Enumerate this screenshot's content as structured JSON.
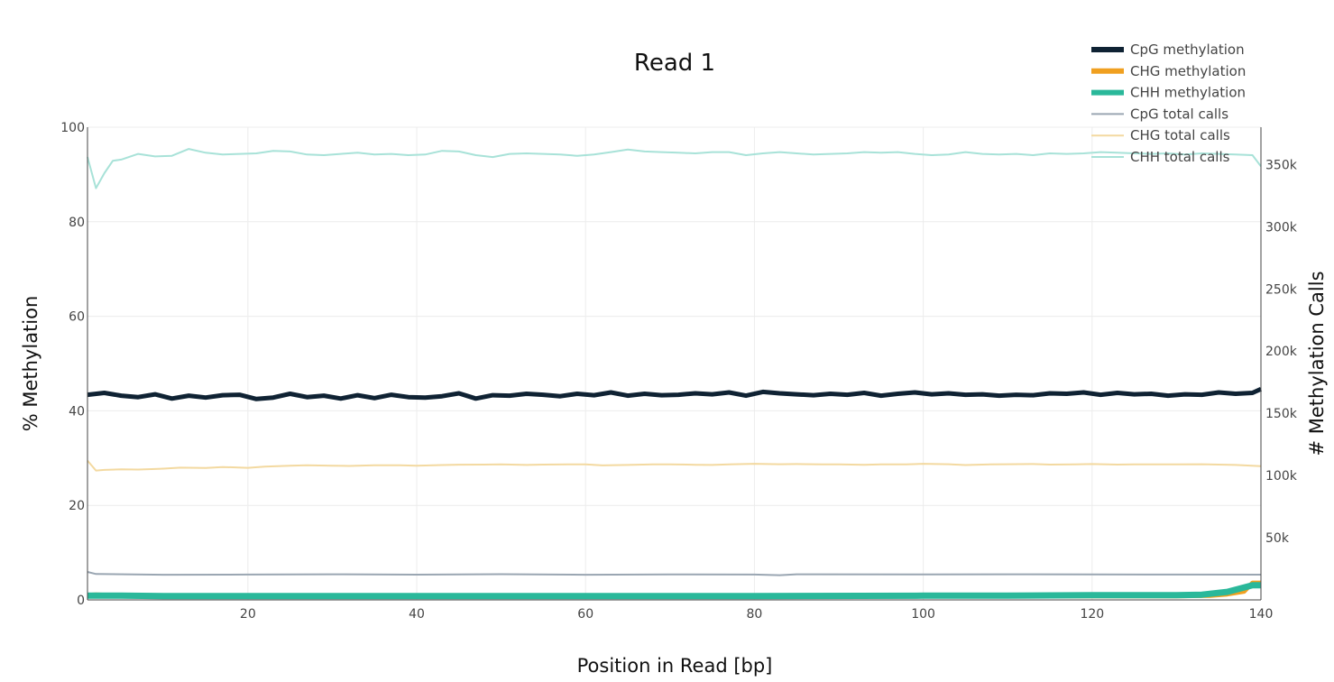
{
  "chart_data": {
    "type": "line",
    "title": "Read 1",
    "xlabel": "Position in Read [bp]",
    "ylabel": "% Methylation",
    "y2label": "# Methylation Calls",
    "xlim": [
      1,
      140
    ],
    "ylim": [
      0,
      100
    ],
    "y2lim": [
      0,
      380000
    ],
    "x_ticks": [
      "20",
      "40",
      "60",
      "80",
      "100",
      "120",
      "140"
    ],
    "y_ticks": [
      "0",
      "20",
      "40",
      "60",
      "80",
      "100"
    ],
    "y2_ticks": [
      "50k",
      "100k",
      "150k",
      "200k",
      "250k",
      "300k",
      "350k"
    ],
    "grid": true,
    "legend_position": "top-right",
    "colors": {
      "cpg_meth": "#0f2233",
      "chg_meth": "#f0a020",
      "chh_meth": "#2ab89a",
      "cpg_calls": "#9aa6b2",
      "chg_calls": "#f3d9a0",
      "chh_calls": "#a8e2d8"
    },
    "series": [
      {
        "name": "CpG methylation",
        "axis": "y",
        "key": "cpg_meth",
        "width": 5,
        "x": [
          1,
          3,
          5,
          7,
          9,
          11,
          13,
          15,
          17,
          19,
          21,
          23,
          25,
          27,
          29,
          31,
          33,
          35,
          37,
          39,
          41,
          43,
          45,
          47,
          49,
          51,
          53,
          55,
          57,
          59,
          61,
          63,
          65,
          67,
          69,
          71,
          73,
          75,
          77,
          79,
          81,
          83,
          85,
          87,
          89,
          91,
          93,
          95,
          97,
          99,
          101,
          103,
          105,
          107,
          109,
          111,
          113,
          115,
          117,
          119,
          121,
          123,
          125,
          127,
          129,
          131,
          133,
          135,
          137,
          139,
          140
        ],
        "y": [
          43.4,
          43.8,
          43.2,
          42.9,
          43.5,
          42.6,
          43.2,
          42.8,
          43.3,
          43.4,
          42.5,
          42.8,
          43.6,
          42.9,
          43.2,
          42.6,
          43.3,
          42.7,
          43.4,
          42.9,
          42.8,
          43.1,
          43.7,
          42.6,
          43.3,
          43.2,
          43.6,
          43.4,
          43.1,
          43.6,
          43.3,
          43.9,
          43.2,
          43.6,
          43.3,
          43.4,
          43.7,
          43.5,
          43.9,
          43.2,
          44.0,
          43.7,
          43.5,
          43.3,
          43.6,
          43.4,
          43.8,
          43.2,
          43.6,
          43.9,
          43.5,
          43.7,
          43.4,
          43.5,
          43.2,
          43.4,
          43.3,
          43.7,
          43.6,
          43.9,
          43.4,
          43.8,
          43.5,
          43.6,
          43.2,
          43.5,
          43.4,
          43.9,
          43.6,
          43.8,
          44.6
        ]
      },
      {
        "name": "CHG methylation",
        "axis": "y",
        "key": "chg_meth",
        "width": 5,
        "x": [
          1,
          2,
          5,
          10,
          20,
          40,
          60,
          80,
          100,
          120,
          130,
          134,
          136,
          138,
          139,
          140
        ],
        "y": [
          1.0,
          1.1,
          0.9,
          0.8,
          0.8,
          0.8,
          0.8,
          0.8,
          0.8,
          0.8,
          0.8,
          0.9,
          1.2,
          1.8,
          3.6,
          3.6
        ]
      },
      {
        "name": "CHH methylation",
        "axis": "y",
        "key": "chh_meth",
        "width": 7,
        "x": [
          1,
          5,
          10,
          20,
          40,
          60,
          80,
          100,
          110,
          120,
          130,
          133,
          136,
          139,
          140
        ],
        "y": [
          0.9,
          0.9,
          0.8,
          0.8,
          0.8,
          0.8,
          0.8,
          0.9,
          0.9,
          1.0,
          1.0,
          1.1,
          1.7,
          3.1,
          3.1
        ]
      },
      {
        "name": "CpG total calls",
        "axis": "y2",
        "key": "cpg_calls",
        "width": 2,
        "x": [
          1,
          2,
          10,
          20,
          30,
          40,
          50,
          60,
          70,
          80,
          83,
          85,
          100,
          110,
          120,
          130,
          140
        ],
        "y": [
          22500,
          20800,
          20200,
          20400,
          20600,
          20300,
          20700,
          20200,
          20500,
          20400,
          19900,
          20600,
          20500,
          20600,
          20500,
          20400,
          20300
        ]
      },
      {
        "name": "CHG total calls",
        "axis": "y2",
        "key": "chg_calls",
        "width": 2,
        "x": [
          1,
          2,
          3,
          5,
          7,
          9,
          10,
          12,
          15,
          17,
          20,
          22,
          25,
          27,
          30,
          32,
          35,
          38,
          40,
          43,
          45,
          48,
          50,
          53,
          55,
          58,
          60,
          62,
          65,
          68,
          70,
          73,
          75,
          77,
          80,
          83,
          85,
          88,
          90,
          93,
          95,
          98,
          100,
          103,
          105,
          108,
          110,
          113,
          115,
          118,
          120,
          123,
          125,
          128,
          130,
          133,
          135,
          137,
          140
        ],
        "y": [
          112000,
          104000,
          104500,
          105000,
          104800,
          105200,
          105500,
          106300,
          106000,
          106800,
          106200,
          107200,
          107800,
          108200,
          107900,
          107700,
          108300,
          108300,
          107900,
          108400,
          108700,
          108800,
          109000,
          108500,
          108800,
          109000,
          108900,
          108100,
          108500,
          108900,
          109000,
          108600,
          108500,
          109000,
          109400,
          109100,
          109200,
          109000,
          109000,
          108600,
          109000,
          108900,
          109400,
          109100,
          108400,
          108900,
          109100,
          109200,
          108800,
          109000,
          109200,
          108800,
          108900,
          109000,
          108900,
          109100,
          108800,
          108500,
          107500
        ]
      },
      {
        "name": "CHH total calls",
        "axis": "y2",
        "key": "chh_calls",
        "width": 2,
        "x": [
          1,
          2,
          3,
          4,
          5,
          7,
          9,
          11,
          13,
          15,
          17,
          19,
          21,
          23,
          25,
          27,
          29,
          31,
          33,
          35,
          37,
          39,
          41,
          43,
          45,
          47,
          49,
          51,
          53,
          55,
          57,
          59,
          61,
          63,
          65,
          67,
          69,
          71,
          73,
          75,
          77,
          79,
          81,
          83,
          85,
          87,
          89,
          91,
          93,
          95,
          97,
          99,
          101,
          103,
          105,
          107,
          109,
          111,
          113,
          115,
          117,
          119,
          121,
          123,
          125,
          127,
          129,
          131,
          133,
          135,
          137,
          139,
          140
        ],
        "y": [
          356000,
          331000,
          343000,
          353000,
          354000,
          358500,
          356500,
          357000,
          362500,
          359500,
          358000,
          358500,
          359000,
          361000,
          360500,
          358000,
          357500,
          358500,
          359500,
          358000,
          358500,
          357500,
          358000,
          361000,
          360500,
          357500,
          356000,
          358500,
          359000,
          358500,
          358000,
          357000,
          358000,
          360000,
          362000,
          360500,
          360000,
          359500,
          359000,
          360000,
          360000,
          357500,
          359000,
          360000,
          359000,
          358000,
          358500,
          359000,
          360000,
          359500,
          360000,
          358500,
          357500,
          358000,
          360000,
          358500,
          358000,
          358500,
          357500,
          359000,
          358500,
          359000,
          360000,
          359500,
          359000,
          358500,
          359000,
          358000,
          359000,
          358500,
          358000,
          357500,
          348500
        ]
      }
    ]
  }
}
